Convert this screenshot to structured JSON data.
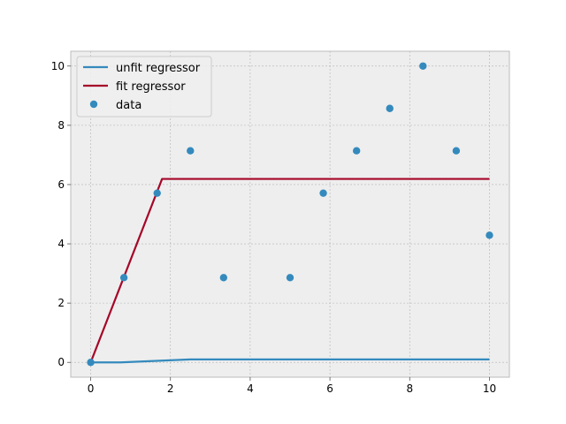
{
  "chart_data": {
    "type": "line",
    "title": "",
    "xlabel": "",
    "ylabel": "",
    "xlim": [
      -0.5,
      10.5
    ],
    "ylim": [
      -0.5,
      10.5
    ],
    "xticks": [
      0,
      2,
      4,
      6,
      8,
      10
    ],
    "yticks": [
      0,
      2,
      4,
      6,
      8,
      10
    ],
    "grid": true,
    "legend_position": "top-left",
    "series": [
      {
        "name": "unfit regressor",
        "kind": "line",
        "color": "#348abd",
        "x": [
          0,
          0.75,
          2.5,
          10
        ],
        "y": [
          0,
          0.0,
          0.1,
          0.1
        ]
      },
      {
        "name": "fit regressor",
        "kind": "line",
        "color": "#a60628",
        "x": [
          0,
          1.79,
          10
        ],
        "y": [
          0,
          6.19,
          6.19
        ]
      },
      {
        "name": "data",
        "kind": "scatter",
        "color": "#348abd",
        "x": [
          0,
          0.833,
          1.667,
          2.5,
          3.333,
          5.0,
          5.833,
          6.667,
          7.5,
          8.333,
          9.167,
          10
        ],
        "y": [
          0,
          2.86,
          5.71,
          7.14,
          2.86,
          2.86,
          5.71,
          7.14,
          8.57,
          10.0,
          7.14,
          4.29
        ]
      }
    ]
  }
}
